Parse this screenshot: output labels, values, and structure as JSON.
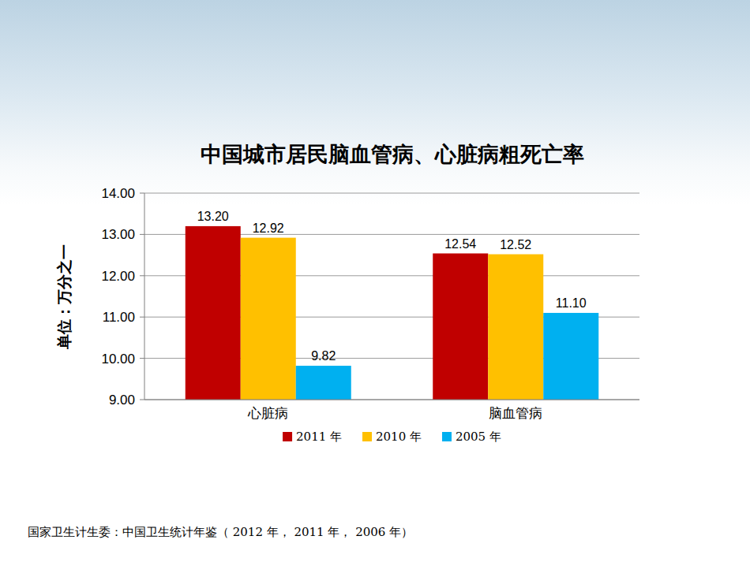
{
  "chart_data": {
    "type": "bar",
    "title": "中国城市居民脑血管病、心脏病粗死亡率",
    "y_label": "单位：万分之一",
    "categories": [
      "心脏病",
      "脑血管病"
    ],
    "series": [
      {
        "name": "2011 年",
        "color": "#c00000",
        "values": [
          13.2,
          12.54
        ],
        "value_labels": [
          "13.20",
          "12.54"
        ]
      },
      {
        "name": "2010 年",
        "color": "#ffc000",
        "values": [
          12.92,
          12.52
        ],
        "value_labels": [
          "12.92",
          "12.52"
        ]
      },
      {
        "name": "2005 年",
        "color": "#00b0f0",
        "values": [
          9.82,
          11.1
        ],
        "value_labels": [
          "9.82",
          "11.10"
        ]
      }
    ],
    "ylim": [
      9,
      14
    ],
    "yticks": [
      {
        "value": 9,
        "label": "9.00"
      },
      {
        "value": 10,
        "label": "10.00"
      },
      {
        "value": 11,
        "label": "11.00"
      },
      {
        "value": 12,
        "label": "12.00"
      },
      {
        "value": 13,
        "label": "13.00"
      },
      {
        "value": 14,
        "label": "14.00"
      }
    ],
    "grid": true,
    "data_labels": true,
    "legend": "bottom",
    "source": "国家卫生计生委：中国卫生统计年鉴（ 2012 年， 2011 年， 2006 年）"
  }
}
